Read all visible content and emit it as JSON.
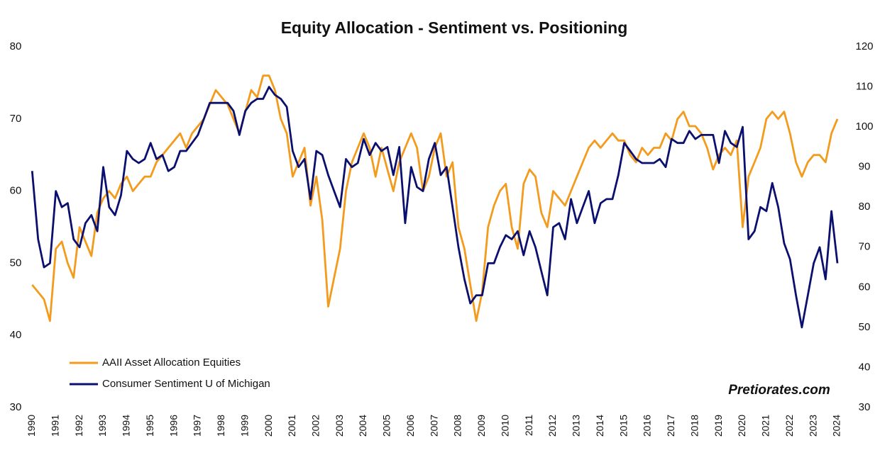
{
  "chart_data": {
    "type": "line",
    "title": "Equity Allocation - Sentiment vs. Positioning",
    "annotation": "Pretiorates.com",
    "legend": "lower left",
    "grid": false,
    "xlim": [
      1989.9,
      2024.3
    ],
    "xticks": [
      1990,
      1991,
      1992,
      1993,
      1994,
      1995,
      1996,
      1997,
      1998,
      1999,
      2000,
      2001,
      2002,
      2003,
      2004,
      2005,
      2006,
      2007,
      2008,
      2009,
      2010,
      2011,
      2012,
      2013,
      2014,
      2015,
      2016,
      2017,
      2018,
      2019,
      2020,
      2021,
      2022,
      2023,
      2024
    ],
    "ylim": [
      30,
      80
    ],
    "yticks": [
      30,
      40,
      50,
      60,
      70,
      80
    ],
    "y2lim": [
      30,
      120
    ],
    "y2ticks": [
      30,
      40,
      50,
      60,
      70,
      80,
      90,
      100,
      110,
      120
    ],
    "x": [
      1990,
      1990.25,
      1990.5,
      1990.75,
      1991,
      1991.25,
      1991.5,
      1991.75,
      1992,
      1992.25,
      1992.5,
      1992.75,
      1993,
      1993.25,
      1993.5,
      1993.75,
      1994,
      1994.25,
      1994.5,
      1994.75,
      1995,
      1995.25,
      1995.5,
      1995.75,
      1996,
      1996.25,
      1996.5,
      1996.75,
      1997,
      1997.25,
      1997.5,
      1997.75,
      1998,
      1998.25,
      1998.5,
      1998.75,
      1999,
      1999.25,
      1999.5,
      1999.75,
      2000,
      2000.25,
      2000.5,
      2000.75,
      2001,
      2001.25,
      2001.5,
      2001.75,
      2002,
      2002.25,
      2002.5,
      2002.75,
      2003,
      2003.25,
      2003.5,
      2003.75,
      2004,
      2004.25,
      2004.5,
      2004.75,
      2005,
      2005.25,
      2005.5,
      2005.75,
      2006,
      2006.25,
      2006.5,
      2006.75,
      2007,
      2007.25,
      2007.5,
      2007.75,
      2008,
      2008.25,
      2008.5,
      2008.75,
      2009,
      2009.25,
      2009.5,
      2009.75,
      2010,
      2010.25,
      2010.5,
      2010.75,
      2011,
      2011.25,
      2011.5,
      2011.75,
      2012,
      2012.25,
      2012.5,
      2012.75,
      2013,
      2013.25,
      2013.5,
      2013.75,
      2014,
      2014.25,
      2014.5,
      2014.75,
      2015,
      2015.25,
      2015.5,
      2015.75,
      2016,
      2016.25,
      2016.5,
      2016.75,
      2017,
      2017.25,
      2017.5,
      2017.75,
      2018,
      2018.25,
      2018.5,
      2018.75,
      2019,
      2019.25,
      2019.5,
      2019.75,
      2020,
      2020.25,
      2020.5,
      2020.75,
      2021,
      2021.25,
      2021.5,
      2021.75,
      2022,
      2022.25,
      2022.5,
      2022.75,
      2023,
      2023.25,
      2023.5,
      2023.75,
      2024
    ],
    "series": [
      {
        "name": "AAII Asset Allocation Equities",
        "color": "#f29b1d",
        "axis": "y",
        "values": [
          47,
          46,
          45,
          42,
          52,
          53,
          50,
          48,
          55,
          53,
          51,
          57,
          59,
          60,
          59,
          61,
          62,
          60,
          61,
          62,
          62,
          64,
          65,
          66,
          67,
          68,
          66,
          68,
          69,
          70,
          72,
          74,
          73,
          72,
          70,
          68,
          71,
          74,
          73,
          76,
          76,
          74,
          70,
          68,
          62,
          64,
          66,
          58,
          62,
          56,
          44,
          48,
          52,
          60,
          64,
          66,
          68,
          66,
          62,
          66,
          63,
          60,
          64,
          66,
          68,
          66,
          60,
          62,
          66,
          68,
          62,
          64,
          55,
          52,
          47,
          42,
          46,
          55,
          58,
          60,
          61,
          55,
          52,
          61,
          63,
          62,
          57,
          55,
          60,
          59,
          58,
          60,
          62,
          64,
          66,
          67,
          66,
          67,
          68,
          67,
          67,
          65,
          64,
          66,
          65,
          66,
          66,
          68,
          67,
          70,
          71,
          69,
          69,
          68,
          66,
          63,
          65,
          66,
          65,
          67,
          55,
          62,
          64,
          66,
          70,
          71,
          70,
          71,
          68,
          64,
          62,
          64,
          65,
          65,
          64,
          68,
          70
        ]
      },
      {
        "name": "Consumer Sentiment U of Michigan",
        "color": "#0b0f6e",
        "axis": "y2",
        "values": [
          89,
          72,
          65,
          66,
          84,
          80,
          81,
          72,
          70,
          76,
          78,
          74,
          90,
          80,
          78,
          83,
          94,
          92,
          91,
          92,
          96,
          92,
          93,
          89,
          90,
          94,
          94,
          96,
          98,
          102,
          106,
          106,
          106,
          106,
          104,
          98,
          104,
          106,
          107,
          107,
          110,
          108,
          107,
          105,
          94,
          90,
          92,
          82,
          94,
          93,
          88,
          84,
          80,
          92,
          90,
          91,
          97,
          93,
          96,
          94,
          95,
          88,
          95,
          76,
          90,
          85,
          84,
          92,
          96,
          88,
          90,
          80,
          70,
          62,
          56,
          58,
          58,
          66,
          66,
          70,
          73,
          72,
          74,
          68,
          74,
          70,
          64,
          58,
          75,
          76,
          72,
          82,
          76,
          80,
          84,
          76,
          81,
          82,
          82,
          88,
          96,
          94,
          92,
          91,
          91,
          91,
          92,
          90,
          97,
          96,
          96,
          99,
          97,
          98,
          98,
          98,
          91,
          99,
          96,
          95,
          100,
          72,
          74,
          80,
          79,
          86,
          80,
          71,
          67,
          58,
          50,
          58,
          66,
          70,
          62,
          79,
          66
        ]
      }
    ]
  }
}
